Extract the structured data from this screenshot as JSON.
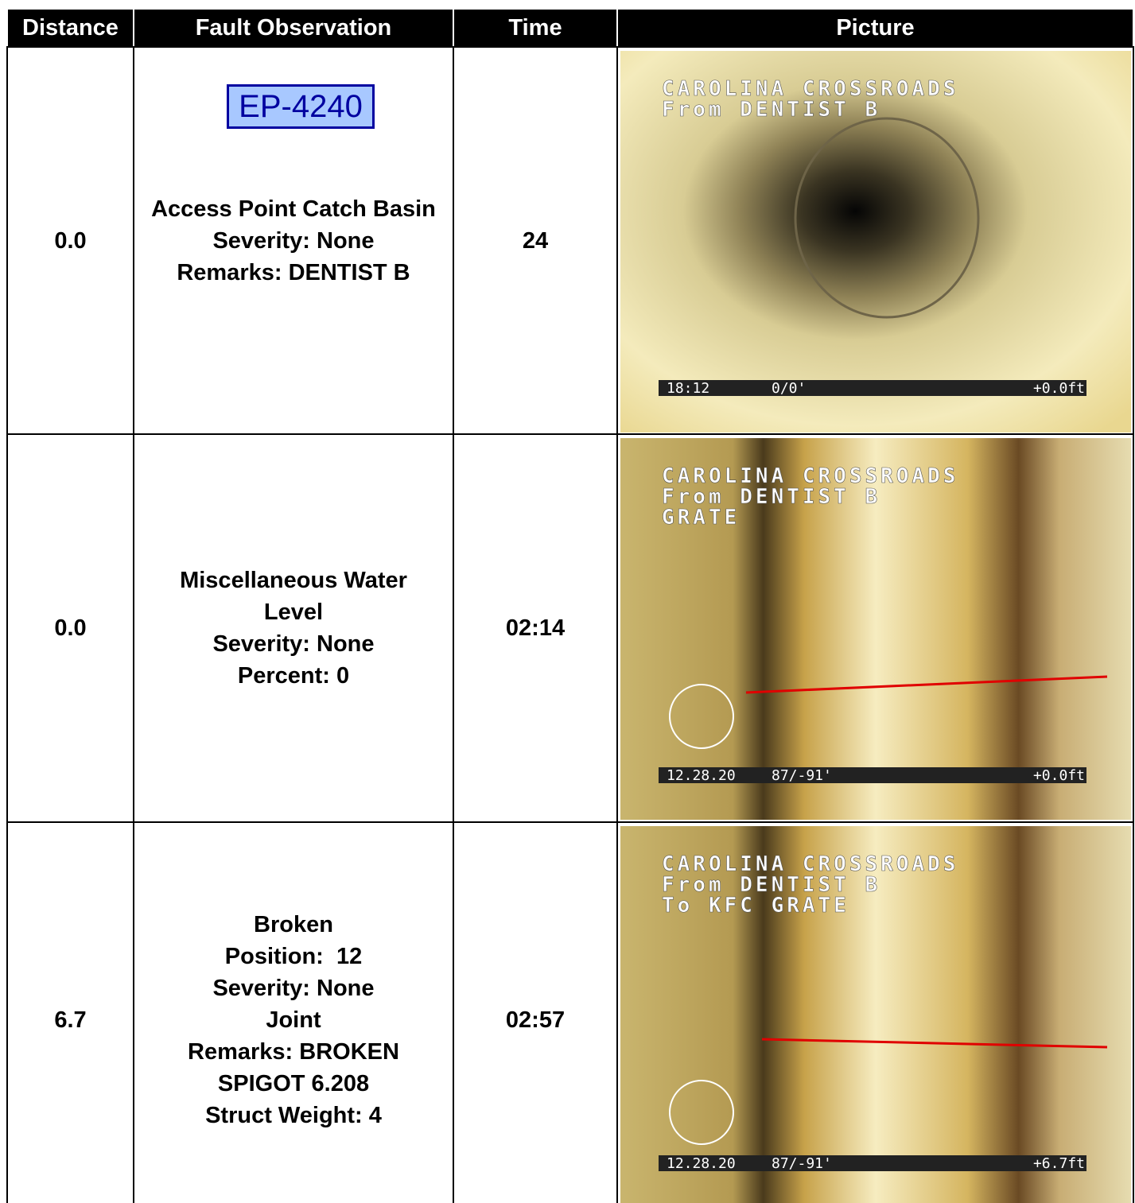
{
  "table": {
    "headers": [
      "Distance",
      "Fault Observation",
      "Time",
      "Picture"
    ],
    "rows": [
      {
        "distance": "0.0",
        "badge": "EP-4240",
        "observation": [
          "Access Point Catch Basin",
          "Severity: None",
          "Remarks: DENTIST B"
        ],
        "time": "24",
        "picture": {
          "overlay": [
            "CAROLINA CROSSROADS",
            "From DENTIST B"
          ],
          "status": [
            "18:12",
            "0/0'",
            "+0.0ft"
          ]
        }
      },
      {
        "distance": "0.0",
        "observation": [
          "Miscellaneous Water",
          "Level",
          "Severity: None",
          "Percent: 0"
        ],
        "time": "02:14",
        "picture": {
          "overlay": [
            "CAROLINA CROSSROADS",
            "From DENTIST B",
            "GRATE"
          ],
          "status": [
            "12.28.20",
            "87/-91'",
            "+0.0ft"
          ]
        }
      },
      {
        "distance": "6.7",
        "observation": [
          "Broken",
          "Position:  12",
          "Severity: None",
          "Joint",
          "Remarks: BROKEN",
          "SPIGOT 6.208",
          "Struct Weight: 4"
        ],
        "time": "02:57",
        "picture": {
          "overlay": [
            "CAROLINA CROSSROADS",
            "From DENTIST B",
            "To KFC GRATE"
          ],
          "status": [
            "12.28.20",
            "87/-91'",
            "+6.7ft"
          ]
        }
      }
    ]
  }
}
